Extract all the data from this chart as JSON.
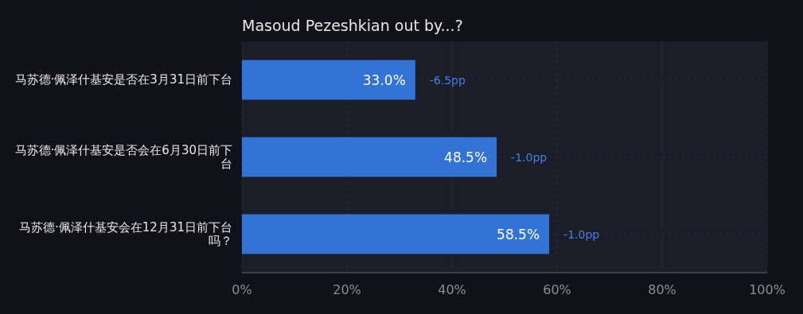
{
  "chart_data": {
    "type": "bar",
    "orientation": "horizontal",
    "title": "Masoud Pezeshkian out by...?",
    "categories": [
      "马苏德·佩泽什基安是否在3月31日前下台",
      "马苏德·佩泽什基安是否会在6月30日前下台",
      "马苏德·佩泽什基安会在12月31日前下台吗？"
    ],
    "values": [
      33.0,
      48.5,
      58.5
    ],
    "color": "#3373d6",
    "value_labels": [
      "33.0%",
      "48.5%",
      "58.5%"
    ],
    "xlim": [
      0,
      100
    ],
    "xticks": [
      {
        "value": 0,
        "label": "0%"
      },
      {
        "value": 20,
        "label": "20%"
      },
      {
        "value": 40,
        "label": "40%"
      },
      {
        "value": 60,
        "label": "60%"
      },
      {
        "value": 80,
        "label": "80%"
      },
      {
        "value": 100,
        "label": "100%"
      }
    ],
    "grid": true,
    "annotations": [
      {
        "text": "-6.5pp",
        "x": 33.0,
        "y": "马苏德·佩泽什基安是否在3月31日前下台"
      },
      {
        "text": "-1.0pp",
        "x": 48.5,
        "y": "马苏德·佩泽什基安是否会在6月30日前下台"
      },
      {
        "text": "-1.0pp",
        "x": 58.5,
        "y": "马苏德·佩泽什基安会在12月31日前下台吗？"
      }
    ]
  }
}
